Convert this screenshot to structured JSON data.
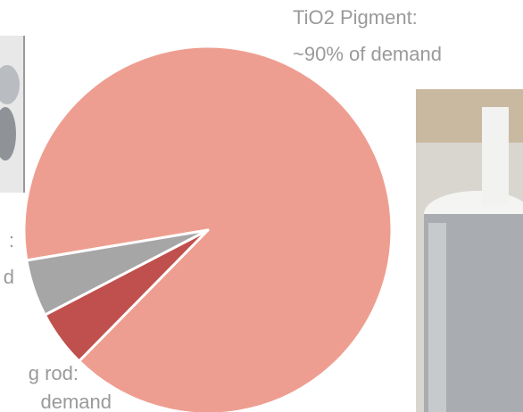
{
  "chart_data": {
    "type": "pie",
    "values": [
      90,
      5,
      5
    ],
    "colors": [
      "#ee9e90",
      "#c0504d",
      "#a6a6a6"
    ],
    "annotations": [
      {
        "lines": [
          "TiO2 Pigment:",
          "~90% of demand"
        ]
      },
      {
        "lines": [
          "g rod:",
          "demand"
        ]
      },
      {
        "lines": [
          ":",
          "d"
        ]
      }
    ]
  }
}
